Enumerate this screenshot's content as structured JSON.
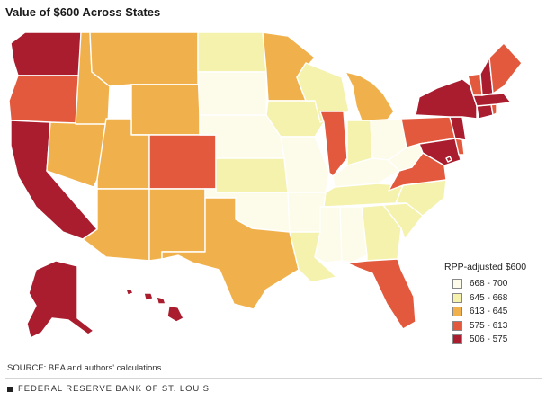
{
  "title": "Value of $600 Across States",
  "legend": {
    "title": "RPP-adjusted $600",
    "bins": [
      {
        "label": "668 - 700",
        "color": "#fdfbe9"
      },
      {
        "label": "645 - 668",
        "color": "#f4f2ad"
      },
      {
        "label": "613 - 645",
        "color": "#f0b14d"
      },
      {
        "label": "575 - 613",
        "color": "#e2593d"
      },
      {
        "label": "506 - 575",
        "color": "#a91d2f"
      }
    ]
  },
  "states": {
    "WA": 4,
    "OR": 3,
    "CA": 4,
    "NV": 2,
    "ID": 2,
    "MT": 2,
    "WY": 2,
    "UT": 2,
    "AZ": 2,
    "CO": 3,
    "NM": 2,
    "ND": 1,
    "SD": 0,
    "NE": 0,
    "KS": 1,
    "OK": 0,
    "TX": 2,
    "MN": 2,
    "IA": 1,
    "MO": 0,
    "AR": 0,
    "LA": 1,
    "WI": 1,
    "IL": 3,
    "MI": 2,
    "IN": 1,
    "OH": 0,
    "KY": 0,
    "TN": 1,
    "MS": 0,
    "AL": 0,
    "GA": 1,
    "FL": 3,
    "SC": 1,
    "NC": 1,
    "VA": 3,
    "WV": 0,
    "MD": 4,
    "DE": 3,
    "PA": 3,
    "NY": 4,
    "NJ": 4,
    "CT": 4,
    "RI": 3,
    "MA": 4,
    "VT": 3,
    "NH": 4,
    "ME": 3,
    "AK": 4,
    "HI": 4,
    "DC": 4
  },
  "source": "SOURCE: BEA and authors' calculations.",
  "footer": "FEDERAL RESERVE BANK OF ST. LOUIS"
}
